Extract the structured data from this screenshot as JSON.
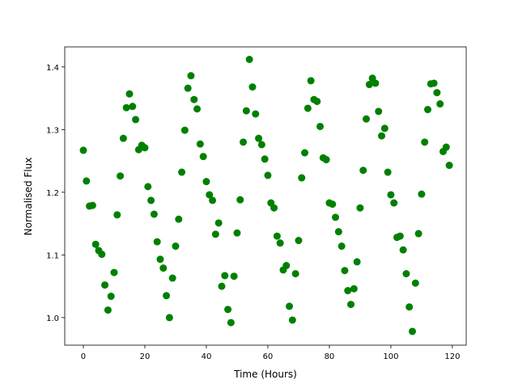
{
  "chart_data": {
    "type": "scatter",
    "xlabel": "Time (Hours)",
    "ylabel": "Normalised Flux",
    "color": "#008000",
    "x": [
      0,
      1,
      2,
      3,
      4,
      5,
      6,
      7,
      8,
      9,
      10,
      11,
      12,
      13,
      14,
      15,
      16,
      17,
      18,
      19,
      20,
      21,
      22,
      23,
      24,
      25,
      26,
      27,
      28,
      29,
      30,
      31,
      32,
      33,
      34,
      35,
      36,
      37,
      38,
      39,
      40,
      41,
      42,
      43,
      44,
      45,
      46,
      47,
      48,
      49,
      50,
      51,
      52,
      53,
      54,
      55,
      56,
      57,
      58,
      59,
      60,
      61,
      62,
      63,
      64,
      65,
      66,
      67,
      68,
      69,
      70,
      71,
      72,
      73,
      74,
      75,
      76,
      77,
      78,
      79,
      80,
      81,
      82,
      83,
      84,
      85,
      86,
      87,
      88,
      89,
      90,
      91,
      92,
      93,
      94,
      95,
      96,
      97,
      98,
      99,
      100,
      101,
      102,
      103,
      104,
      105,
      106,
      107,
      108,
      109,
      110,
      111,
      112,
      113,
      114,
      115,
      116,
      117,
      118,
      119
    ],
    "values": [
      1.267,
      1.218,
      1.178,
      1.179,
      1.117,
      1.107,
      1.101,
      1.052,
      1.012,
      1.034,
      1.072,
      1.164,
      1.226,
      1.286,
      1.335,
      1.357,
      1.337,
      1.316,
      1.268,
      1.275,
      1.271,
      1.209,
      1.187,
      1.165,
      1.121,
      1.093,
      1.079,
      1.035,
      1.0,
      1.063,
      1.114,
      1.157,
      1.232,
      1.299,
      1.366,
      1.386,
      1.348,
      1.333,
      1.277,
      1.257,
      1.217,
      1.196,
      1.187,
      1.133,
      1.151,
      1.05,
      1.067,
      1.013,
      0.992,
      1.066,
      1.135,
      1.188,
      1.28,
      1.33,
      1.412,
      1.368,
      1.325,
      1.286,
      1.276,
      1.253,
      1.227,
      1.183,
      1.175,
      1.13,
      1.119,
      1.076,
      1.083,
      1.018,
      0.996,
      1.07,
      1.123,
      1.223,
      1.263,
      1.334,
      1.378,
      1.348,
      1.345,
      1.305,
      1.255,
      1.252,
      1.183,
      1.181,
      1.16,
      1.137,
      1.114,
      1.075,
      1.043,
      1.021,
      1.046,
      1.089,
      1.175,
      1.235,
      1.317,
      1.372,
      1.382,
      1.374,
      1.329,
      1.29,
      1.302,
      1.232,
      1.196,
      1.183,
      1.128,
      1.13,
      1.108,
      1.07,
      1.017,
      0.978,
      1.055,
      1.134,
      1.197,
      1.28,
      1.332,
      1.373,
      1.374,
      1.359,
      1.341,
      1.265,
      1.272,
      1.243
    ],
    "xlim": [
      -6.05,
      124.5
    ],
    "xticks": [
      0,
      20,
      40,
      60,
      80,
      100,
      120
    ],
    "ylim": [
      0.956,
      1.432
    ],
    "yticks": [
      {
        "value": 1,
        "label": "1.0"
      },
      1.1,
      1.2,
      1.3,
      1.4
    ]
  }
}
